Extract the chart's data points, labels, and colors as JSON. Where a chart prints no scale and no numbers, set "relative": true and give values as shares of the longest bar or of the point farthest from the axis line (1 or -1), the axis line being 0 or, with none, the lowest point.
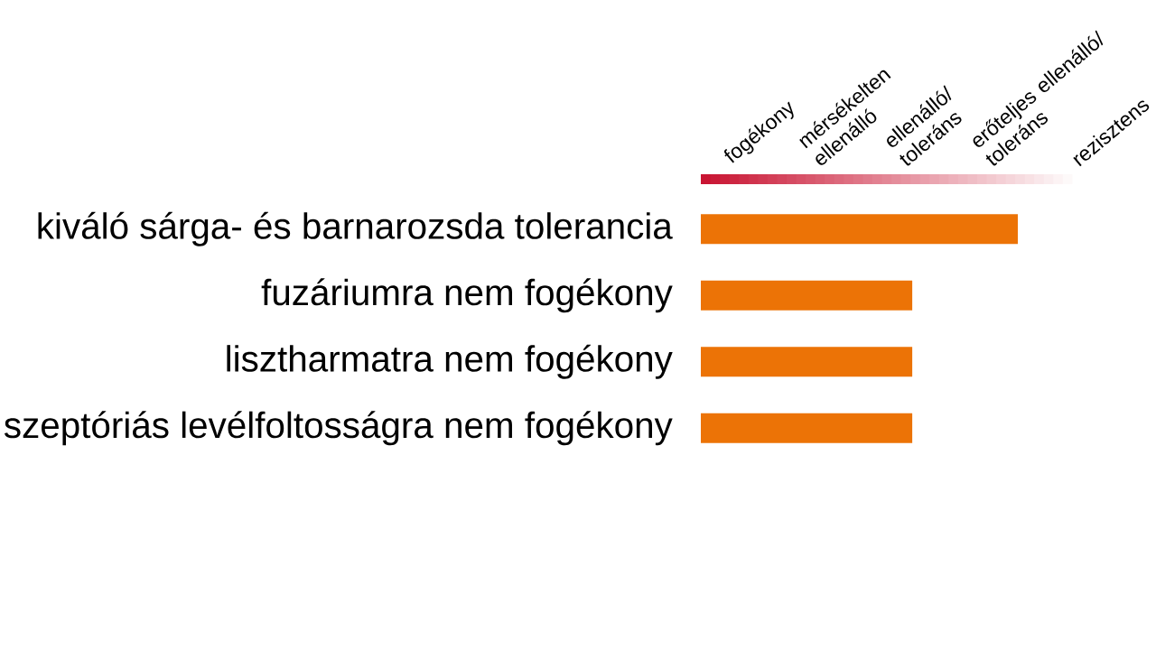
{
  "chart_data": {
    "type": "bar",
    "orientation": "horizontal",
    "relative": true,
    "categories": [
      "kiváló sárga- és barnarozsda tolerancia",
      "fuzáriumra nem fogékony",
      "lisztharmatra nem fogékony",
      "szeptóriás levélfoltosságra nem fogékony"
    ],
    "values": [
      1,
      0.667,
      0.667,
      0.667
    ],
    "color": "#ec7306",
    "annotations": [
      "fogékony",
      "mérsékelten ellenálló",
      "ellenálló/ toleráns",
      "erőteljes ellenálló/ toleráns",
      "rezisztens"
    ]
  }
}
